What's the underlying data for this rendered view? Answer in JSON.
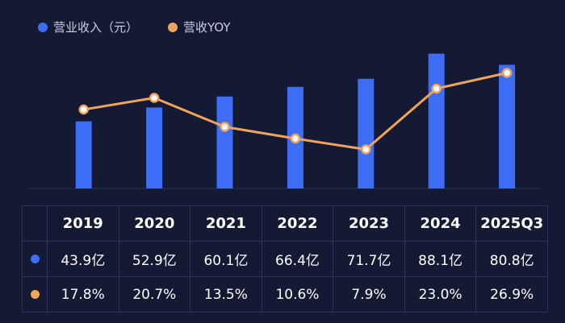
{
  "colors": {
    "bar": "#3d6cf5",
    "line": "#f0a35a",
    "background": "#141a33"
  },
  "chart_data": {
    "type": "bar+line",
    "categories": [
      "2019",
      "2020",
      "2021",
      "2022",
      "2023",
      "2024",
      "2025Q3"
    ],
    "series": [
      {
        "name": "营业收入（元）",
        "type": "bar",
        "values": [
          43.9,
          52.9,
          60.1,
          66.4,
          71.7,
          88.1,
          80.8
        ],
        "labels": [
          "43.9亿",
          "52.9亿",
          "60.1亿",
          "66.4亿",
          "71.7亿",
          "88.1亿",
          "80.8亿"
        ]
      },
      {
        "name": "营收YOY",
        "type": "line",
        "values": [
          17.8,
          20.7,
          13.5,
          10.6,
          7.9,
          23.0,
          26.9
        ],
        "labels": [
          "17.8%",
          "20.7%",
          "13.5%",
          "10.6%",
          "7.9%",
          "23.0%",
          "26.9%"
        ]
      }
    ],
    "legend_position": "top-left",
    "bar_ylim": [
      0,
      100
    ],
    "line_ylim": [
      0,
      35
    ]
  }
}
